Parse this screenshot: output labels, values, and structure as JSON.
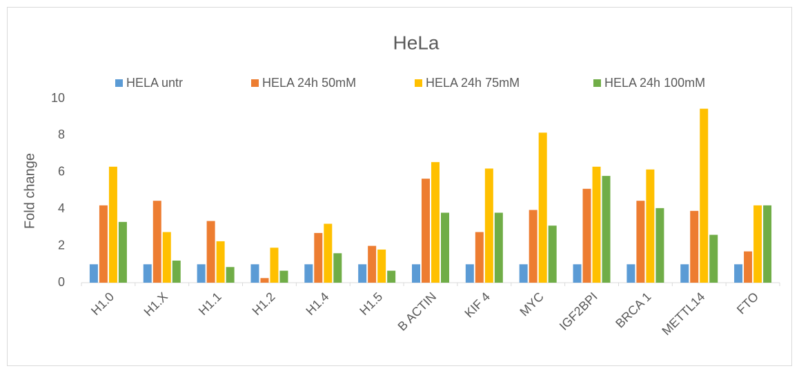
{
  "chart_data": {
    "type": "bar",
    "title": "HeLa",
    "y_label": "Fold change",
    "categories": [
      "H1.0",
      "H1.X",
      "H1.1",
      "H1.2",
      "H1.4",
      "H1.5",
      "B ACTIN",
      "KIF 4",
      "MYC",
      "IGF2BPI",
      "BRCA 1",
      "METTL14",
      "FTO"
    ],
    "series": [
      {
        "name": "HELA untr",
        "color": "#5b9bd5",
        "values": [
          1,
          1,
          1,
          1,
          1,
          1,
          1,
          1,
          1,
          1,
          1,
          1,
          1
        ]
      },
      {
        "name": "HELA 24h 50mM",
        "color": "#ed7d31",
        "values": [
          4.2,
          4.45,
          3.35,
          0.25,
          2.7,
          2.0,
          5.65,
          2.75,
          3.95,
          5.1,
          4.45,
          3.9,
          1.7
        ]
      },
      {
        "name": "HELA 24h 75mM",
        "color": "#ffc000",
        "values": [
          6.3,
          2.75,
          2.25,
          1.9,
          3.2,
          1.8,
          6.55,
          6.2,
          8.15,
          6.3,
          6.15,
          9.45,
          4.2
        ]
      },
      {
        "name": "HELA 24h 100mM",
        "color": "#70ad47",
        "values": [
          3.3,
          1.2,
          0.85,
          0.65,
          1.6,
          0.65,
          3.8,
          3.8,
          3.1,
          5.8,
          4.05,
          2.6,
          4.2
        ]
      }
    ],
    "ylim": [
      0,
      10
    ],
    "yticks": [
      0,
      2,
      4,
      6,
      8,
      10
    ],
    "legend": "top"
  }
}
